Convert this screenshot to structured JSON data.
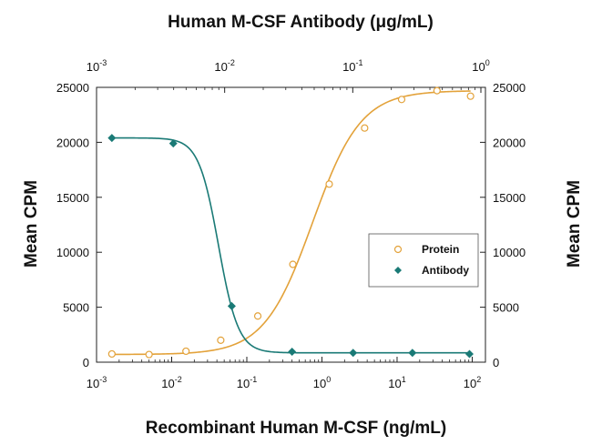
{
  "chart_data": {
    "type": "scatter",
    "title": "Human M-CSF Antibody (μg/mL)",
    "xlabel": "Recombinant Human M-CSF (ng/mL)",
    "ylabel": "Mean CPM",
    "ylabel_right": "Mean CPM",
    "x_scale": "log",
    "xlim": [
      0.001,
      150
    ],
    "ylim": [
      0,
      25000
    ],
    "x_top_scale": "log",
    "x_top_lim": [
      0.001,
      1
    ],
    "x_ticks": [
      {
        "value": 0.001,
        "base": "10",
        "exp": "-3"
      },
      {
        "value": 0.01,
        "base": "10",
        "exp": "-2"
      },
      {
        "value": 0.1,
        "base": "10",
        "exp": "-1"
      },
      {
        "value": 1,
        "base": "10",
        "exp": "0"
      },
      {
        "value": 10,
        "base": "10",
        "exp": "1"
      },
      {
        "value": 100,
        "base": "10",
        "exp": "2"
      }
    ],
    "x_top_ticks": [
      {
        "value": 0.001,
        "base": "10",
        "exp": "-3"
      },
      {
        "value": 0.01,
        "base": "10",
        "exp": "-2"
      },
      {
        "value": 0.1,
        "base": "10",
        "exp": "-1"
      },
      {
        "value": 1,
        "base": "10",
        "exp": "0"
      }
    ],
    "y_ticks": [
      {
        "value": 0,
        "label": "0"
      },
      {
        "value": 5000,
        "label": "5000"
      },
      {
        "value": 10000,
        "label": "10000"
      },
      {
        "value": 15000,
        "label": "15000"
      },
      {
        "value": 20000,
        "label": "20000"
      },
      {
        "value": 25000,
        "label": "25000"
      }
    ],
    "legend_position": "center-right",
    "series": [
      {
        "name": "Protein",
        "color": "#E3A23A",
        "marker": "open-circle",
        "x": [
          0.0016,
          0.005,
          0.0155,
          0.045,
          0.14,
          0.41,
          1.25,
          3.7,
          11.5,
          34,
          95
        ],
        "y": [
          750,
          700,
          1000,
          2000,
          4200,
          8900,
          16200,
          21300,
          23900,
          24700,
          24200
        ],
        "fit": {
          "bottom": 700,
          "top": 24700,
          "ec50": 0.75,
          "hill": 1.35
        }
      },
      {
        "name": "Antibody",
        "color": "#1A7A76",
        "marker": "filled-diamond",
        "x": [
          0.0016,
          0.0105,
          0.063,
          0.4,
          2.6,
          16,
          92
        ],
        "y": [
          20400,
          19900,
          5100,
          950,
          850,
          850,
          750
        ],
        "fit": {
          "bottom": 850,
          "top": 20400,
          "ec50": 0.042,
          "hill": 3.3
        }
      }
    ]
  }
}
